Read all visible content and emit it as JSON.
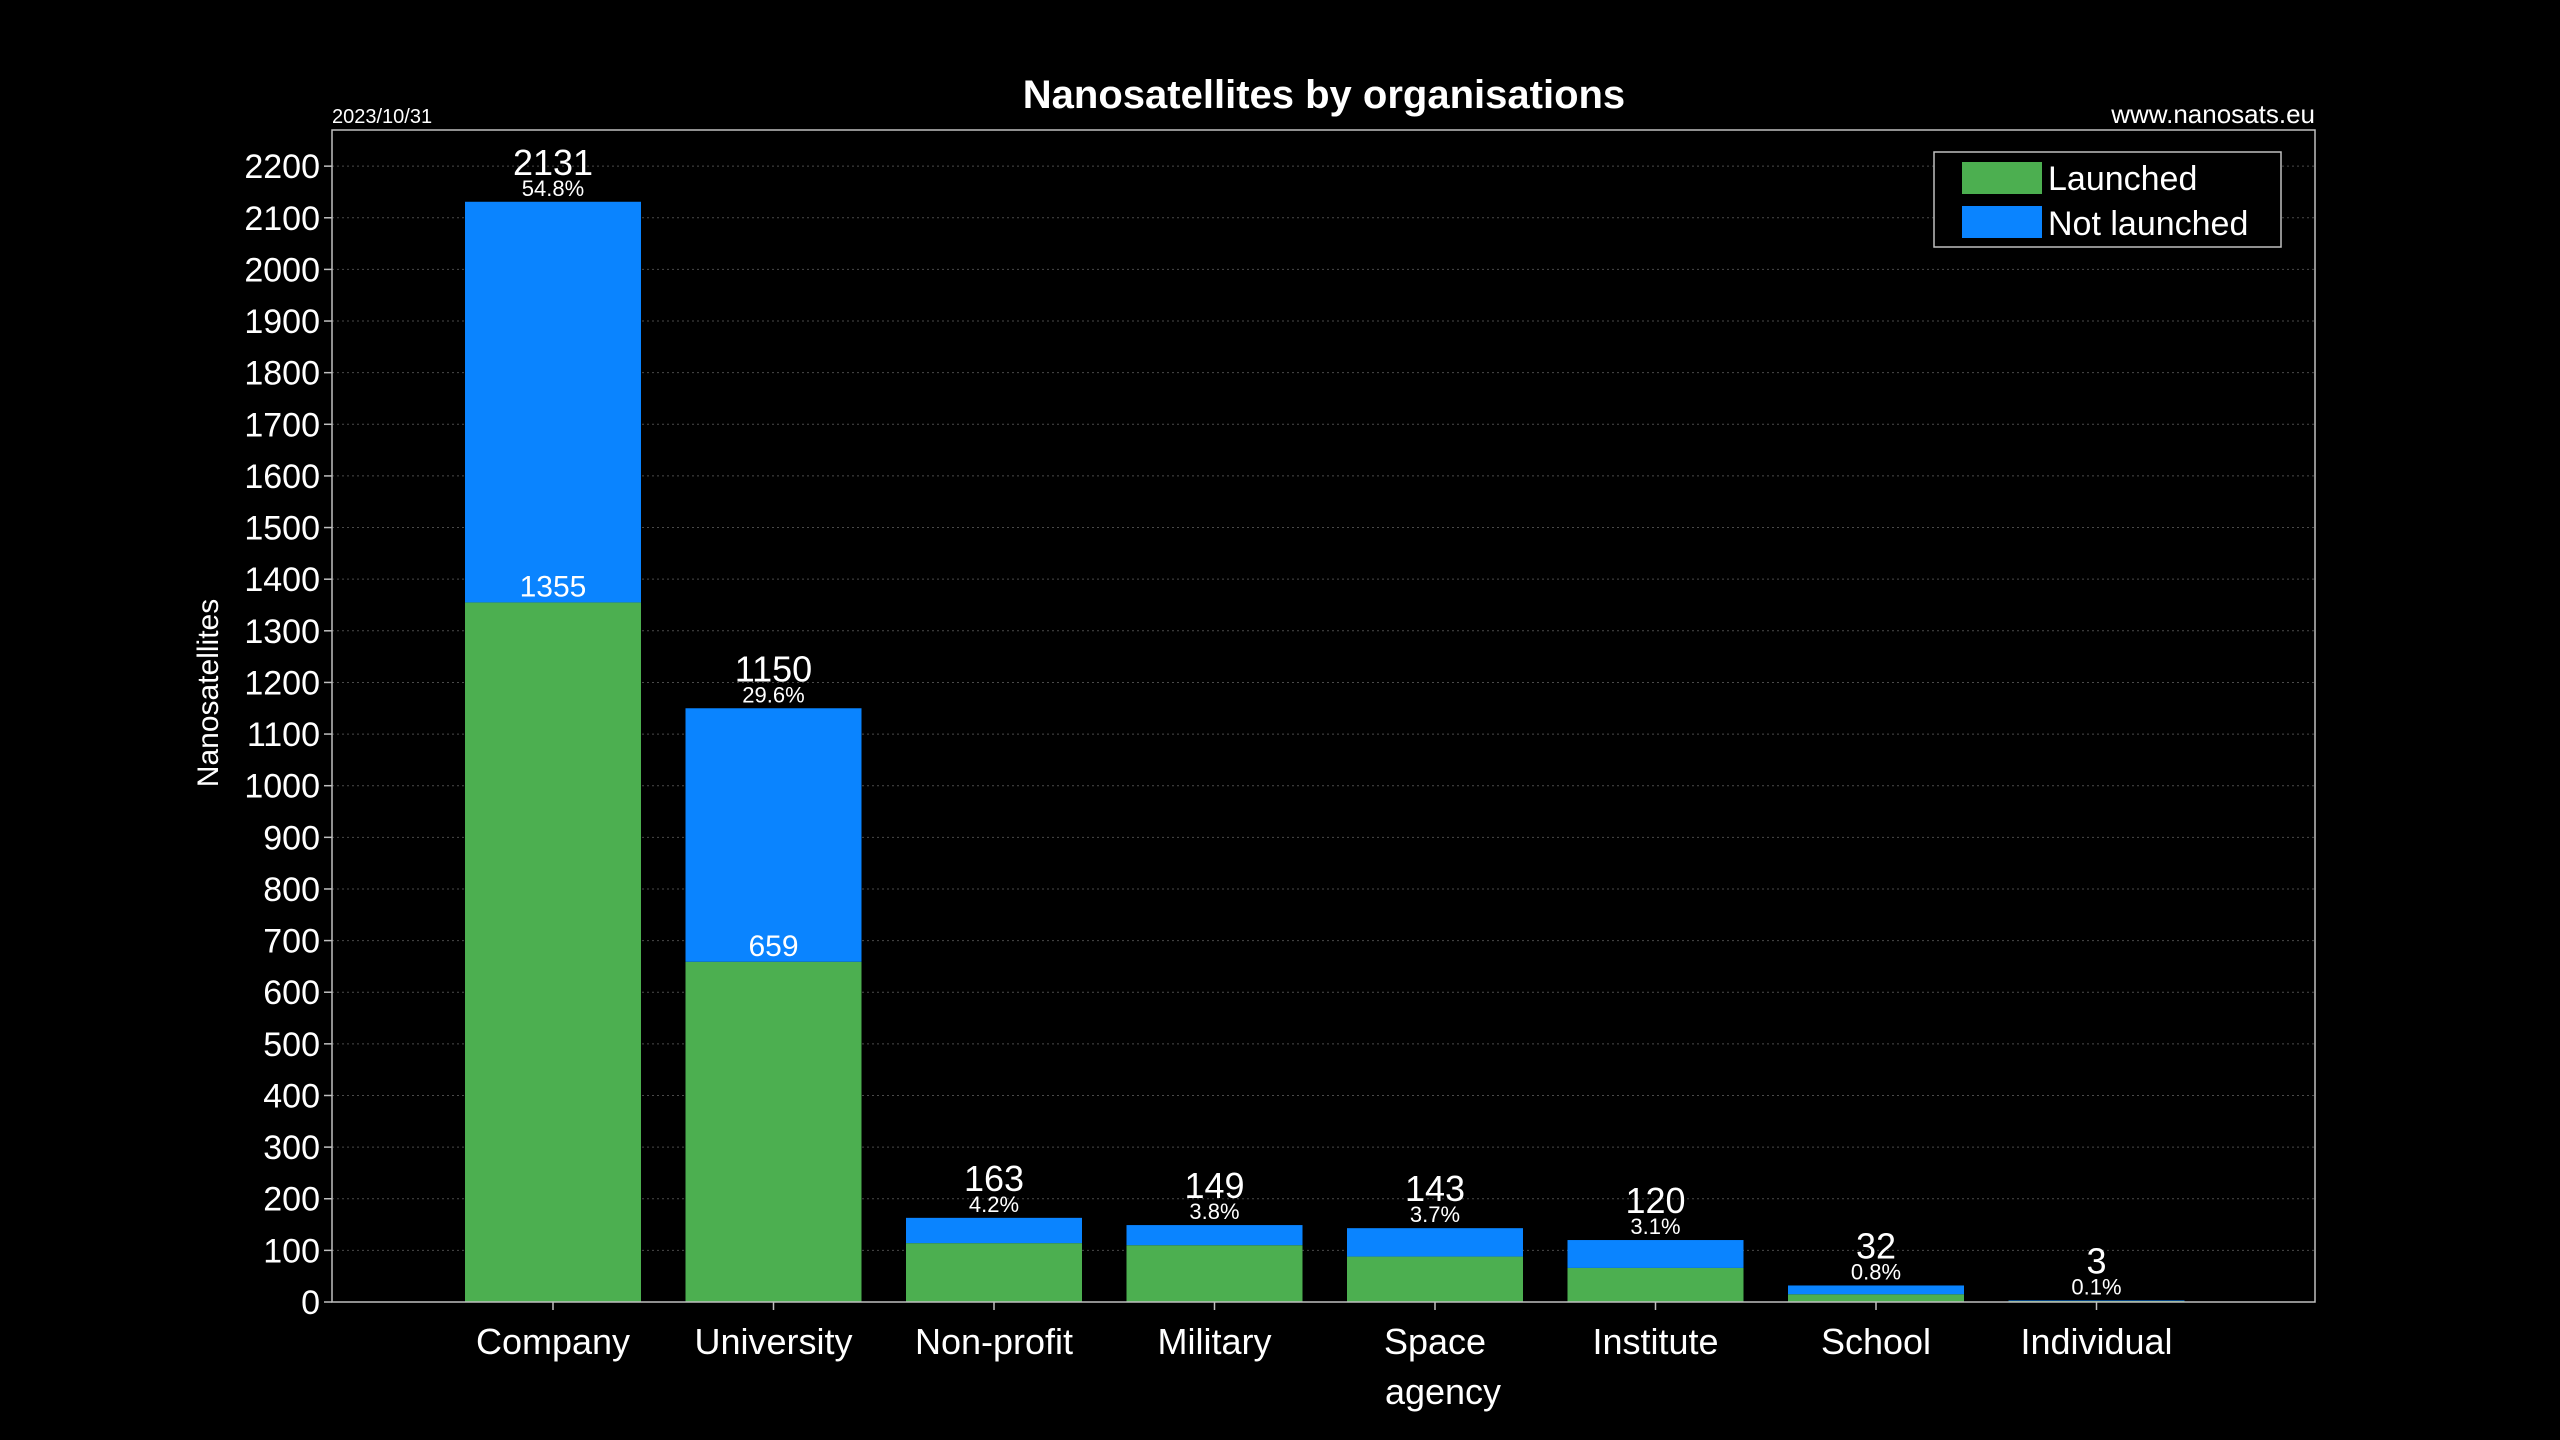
{
  "chart_data": {
    "type": "bar",
    "stacked": true,
    "title": "Nanosatellites by organisations",
    "date": "2023/10/31",
    "source": "www.nanosats.eu",
    "ylabel": "Nanosatellites",
    "xlabel": "",
    "ylim": [
      0,
      2270
    ],
    "yticks": [
      0,
      100,
      200,
      300,
      400,
      500,
      600,
      700,
      800,
      900,
      1000,
      1100,
      1200,
      1300,
      1400,
      1500,
      1600,
      1700,
      1800,
      1900,
      2000,
      2100,
      2200
    ],
    "grid": true,
    "legend_position": "top-right",
    "categories": [
      [
        "Company"
      ],
      [
        "University"
      ],
      [
        "Non-profit"
      ],
      [
        "Military"
      ],
      [
        "Space",
        "agency"
      ],
      [
        "Institute"
      ],
      [
        "School"
      ],
      [
        "Individual"
      ]
    ],
    "series": [
      {
        "name": "Launched",
        "color": "#4caf50",
        "values": [
          1355,
          659,
          114,
          110,
          88,
          66,
          15,
          2
        ]
      },
      {
        "name": "Not launched",
        "color": "#0a84ff",
        "values": [
          776,
          491,
          49,
          39,
          55,
          54,
          17,
          1
        ]
      }
    ],
    "totals": [
      2131,
      1150,
      163,
      149,
      143,
      120,
      32,
      3
    ],
    "percentages": [
      "54.8%",
      "29.6%",
      "4.2%",
      "3.8%",
      "3.7%",
      "3.1%",
      "0.8%",
      "0.1%"
    ],
    "launched_labels": [
      "1355",
      "659",
      "",
      "",
      "",
      "",
      "",
      ""
    ],
    "colors": {
      "background": "#000000",
      "text": "#ffffff",
      "axis": "#bfbfbf",
      "grid": "#4a4a4a"
    }
  }
}
